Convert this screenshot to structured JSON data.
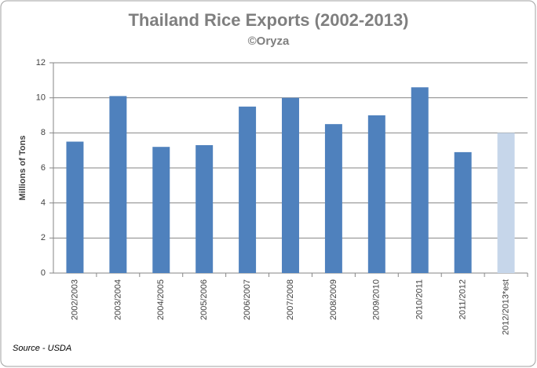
{
  "chart_data": {
    "type": "bar",
    "title": "Thailand Rice Exports (2002-2013)",
    "subtitle": "©Oryza",
    "y_label": "Millions of Tons",
    "source": "Source - USDA",
    "categories": [
      "2002/2003",
      "2003/2004",
      "2004/2005",
      "2005/2006",
      "2006/2007",
      "2007/2008",
      "2008/2009",
      "2009/2010",
      "2010/2011",
      "2011/2012",
      "2012/2013*est"
    ],
    "values": [
      7.5,
      10.1,
      7.2,
      7.3,
      9.5,
      10.0,
      8.5,
      9.0,
      10.6,
      6.9,
      8.0
    ],
    "colors": [
      "#4f81bd",
      "#4f81bd",
      "#4f81bd",
      "#4f81bd",
      "#4f81bd",
      "#4f81bd",
      "#4f81bd",
      "#4f81bd",
      "#4f81bd",
      "#4f81bd",
      "#c6d6ea"
    ],
    "ylim": [
      0,
      12
    ],
    "yticks": [
      0,
      2,
      4,
      6,
      8,
      10,
      12
    ],
    "grid": true
  }
}
